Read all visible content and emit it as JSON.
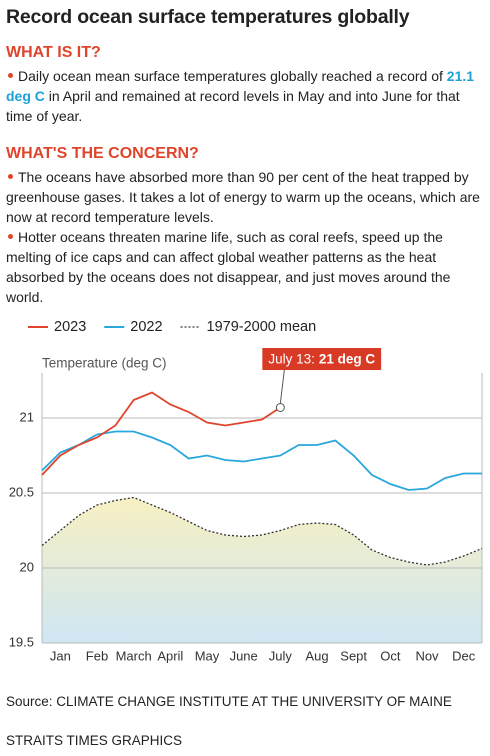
{
  "header": {
    "title": "Record ocean surface temperatures globally"
  },
  "sections": [
    {
      "heading": "WHAT IS IT?",
      "bullets": [
        [
          "Daily ocean mean surface temperatures globally reached a record of ",
          "21.1 deg C",
          " in April and remained at record levels in May and into June for that time of year."
        ]
      ]
    },
    {
      "heading": "WHAT'S THE CONCERN?",
      "bullets": [
        [
          "The oceans have absorbed more than 90 per cent of the heat trapped by greenhouse gases. It takes a lot of energy to warm up the oceans, which are now at record temperature levels."
        ],
        [
          "Hotter oceans threaten marine life, such as coral reefs, speed up the melting of ice caps and can affect global weather patterns as the heat absorbed by the oceans does not disappear, and just moves around the world."
        ]
      ]
    }
  ],
  "chart_data": {
    "type": "line",
    "y_label": "Temperature (deg C)",
    "x": [
      0,
      0.5,
      1,
      1.5,
      2,
      2.5,
      3,
      3.5,
      4,
      4.5,
      5,
      5.5,
      6,
      6.5,
      7,
      7.5,
      8,
      8.5,
      9,
      9.5,
      10,
      10.5,
      11,
      11.5,
      12
    ],
    "xlim": [
      0,
      12
    ],
    "xticks": [
      {
        "value": 0.5,
        "label": "Jan"
      },
      {
        "value": 1.5,
        "label": "Feb"
      },
      {
        "value": 2.5,
        "label": "March"
      },
      {
        "value": 3.5,
        "label": "April"
      },
      {
        "value": 4.5,
        "label": "May"
      },
      {
        "value": 5.5,
        "label": "June"
      },
      {
        "value": 6.5,
        "label": "July"
      },
      {
        "value": 7.5,
        "label": "Aug"
      },
      {
        "value": 8.5,
        "label": "Sept"
      },
      {
        "value": 9.5,
        "label": "Oct"
      },
      {
        "value": 10.5,
        "label": "Nov"
      },
      {
        "value": 11.5,
        "label": "Dec"
      }
    ],
    "ylim": [
      19.5,
      21.3
    ],
    "yticks": [
      19.5,
      20,
      20.5,
      21
    ],
    "grid": true,
    "series": [
      {
        "name": "2023",
        "color": "#e0452b",
        "values": [
          20.62,
          20.75,
          20.82,
          20.87,
          20.95,
          21.12,
          21.17,
          21.09,
          21.04,
          20.97,
          20.95,
          20.97,
          20.99,
          21.07,
          null,
          null,
          null,
          null,
          null,
          null,
          null,
          null,
          null,
          null,
          null
        ]
      },
      {
        "name": "2022",
        "color": "#2aa7dc",
        "values": [
          20.65,
          20.77,
          20.82,
          20.89,
          20.91,
          20.91,
          20.87,
          20.82,
          20.73,
          20.75,
          20.72,
          20.71,
          20.73,
          20.75,
          20.82,
          20.82,
          20.85,
          20.75,
          20.62,
          20.56,
          20.52,
          20.53,
          20.6,
          20.63,
          20.63
        ]
      },
      {
        "name": "1979-2000 mean",
        "color": "#333333",
        "dashed": true,
        "area": true,
        "values": [
          20.15,
          20.25,
          20.35,
          20.42,
          20.45,
          20.47,
          20.42,
          20.37,
          20.31,
          20.25,
          20.22,
          20.21,
          20.22,
          20.25,
          20.29,
          20.3,
          20.29,
          20.22,
          20.12,
          20.07,
          20.04,
          20.02,
          20.04,
          20.08,
          20.13
        ]
      }
    ],
    "annotation": {
      "label": "July 13:",
      "value_text": "21 deg C",
      "series": 0,
      "index": 13,
      "color": "#d93a25"
    }
  },
  "footer": {
    "source": "Source: CLIMATE CHANGE INSTITUTE AT THE UNIVERSITY OF MAINE",
    "credit": "STRAITS TIMES GRAPHICS"
  }
}
